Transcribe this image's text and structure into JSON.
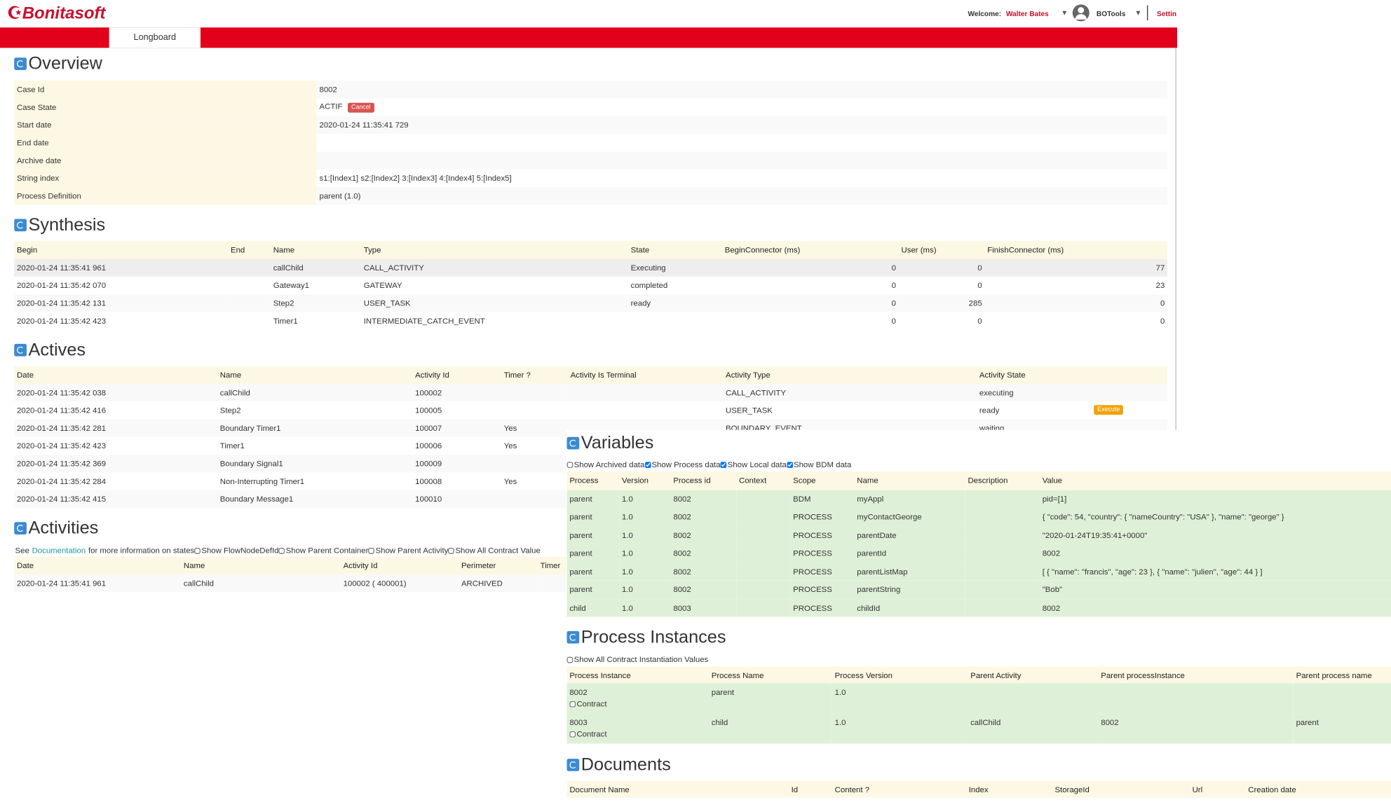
{
  "header": {
    "logo": "Bonitasoft",
    "welcome": "Welcome:",
    "user": "Walter Bates",
    "app": "BOTools",
    "settings": "Settin",
    "tab": "Longboard"
  },
  "overview": {
    "title": "Overview",
    "cancel": "Cancel",
    "rows": [
      [
        "Case Id",
        "8002"
      ],
      [
        "Case State",
        "ACTIF"
      ],
      [
        "Start date",
        "2020-01-24 11:35:41 729"
      ],
      [
        "End date",
        null
      ],
      [
        "Archive date",
        null
      ],
      [
        "String index",
        "s1:[Index1] s2:[Index2] 3:[Index3] 4:[Index4] 5:[Index5]"
      ],
      [
        "Process Definition",
        "parent (1.0)"
      ]
    ]
  },
  "synthesis": {
    "title": "Synthesis",
    "headers": [
      "Begin",
      "End",
      "Name",
      "Type",
      "State",
      "BeginConnector (ms)",
      "User (ms)",
      "FinishConnector (ms)"
    ],
    "rows": [
      [
        "2020-01-24 11:35:41 961",
        null,
        "callChild",
        "CALL_ACTIVITY",
        "Executing",
        0,
        0,
        77
      ],
      [
        "2020-01-24 11:35:42 070",
        null,
        "Gateway1",
        "GATEWAY",
        "completed",
        0,
        0,
        23
      ],
      [
        "2020-01-24 11:35:42 131",
        null,
        "Step2",
        "USER_TASK",
        "ready",
        0,
        285,
        0
      ],
      [
        "2020-01-24 11:35:42 423",
        null,
        "Timer1",
        "INTERMEDIATE_CATCH_EVENT",
        null,
        0,
        0,
        0
      ]
    ]
  },
  "actives": {
    "title": "Actives",
    "execute": "Execute",
    "headers": [
      "Date",
      "Name",
      "Activity Id",
      "Timer ?",
      "Activity Is Terminal",
      "Activity Type",
      "Activity State"
    ],
    "rows": [
      [
        "2020-01-24 11:35:42 038",
        "callChild",
        "100002",
        null,
        null,
        "CALL_ACTIVITY",
        "executing"
      ],
      [
        "2020-01-24 11:35:42 416",
        "Step2",
        "100005",
        null,
        null,
        "USER_TASK",
        "ready"
      ],
      [
        "2020-01-24 11:35:42 281",
        "Boundary Timer1",
        "100007",
        "Yes",
        null,
        "BOUNDARY_EVENT",
        "waiting"
      ],
      [
        "2020-01-24 11:35:42 423",
        "Timer1",
        "100006",
        "Yes"
      ],
      [
        "2020-01-24 11:35:42 369",
        "Boundary Signal1",
        "100009"
      ],
      [
        "2020-01-24 11:35:42 284",
        "Non-Interrupting Timer1",
        "100008",
        "Yes"
      ],
      [
        "2020-01-24 11:35:42 415",
        "Boundary Message1",
        "100010"
      ]
    ]
  },
  "activities": {
    "title": "Activities",
    "note_prefix": "See",
    "link": "Documentation",
    "note_suffix": "for more information on states",
    "options": [
      "Show FlowNodeDefId",
      "Show Parent Container",
      "Show Parent Activity",
      "Show All Contract Value"
    ],
    "headers": [
      "Date",
      "Name",
      "Activity Id",
      "Perimeter",
      "Timer"
    ],
    "rows": [
      [
        "2020-01-24 11:35:41 961",
        "callChild",
        "100002 ( 400001)",
        "ARCHIVED"
      ]
    ]
  },
  "variables": {
    "title": "Variables",
    "options": [
      {
        "label": "Show Archived data",
        "checked": false
      },
      {
        "label": "Show Process data",
        "checked": true
      },
      {
        "label": "Show Local data",
        "checked": true
      },
      {
        "label": "Show BDM data",
        "checked": true
      }
    ],
    "headers": [
      "Process",
      "Version",
      "Process id",
      "Context",
      "Scope",
      "Name",
      "Description",
      "Value"
    ],
    "rows": [
      [
        "parent",
        "1.0",
        "8002",
        null,
        "BDM",
        "myAppl",
        null,
        "pid=[1]"
      ],
      [
        "parent",
        "1.0",
        "8002",
        null,
        "PROCESS",
        "myContactGeorge",
        null,
        "{ \"code\": 54, \"country\": { \"nameCountry\": \"USA\" }, \"name\": \"george\" }"
      ],
      [
        "parent",
        "1.0",
        "8002",
        null,
        "PROCESS",
        "parentDate",
        null,
        "\"2020-01-24T19:35:41+0000\""
      ],
      [
        "parent",
        "1.0",
        "8002",
        null,
        "PROCESS",
        "parentId",
        null,
        "8002"
      ],
      [
        "parent",
        "1.0",
        "8002",
        null,
        "PROCESS",
        "parentListMap",
        null,
        "[ { \"name\": \"francis\", \"age\": 23 }, { \"name\": \"julien\", \"age\": 44 } ]"
      ],
      [
        "parent",
        "1.0",
        "8002",
        null,
        "PROCESS",
        "parentString",
        null,
        "\"Bob\""
      ],
      [
        "child",
        "1.0",
        "8003",
        null,
        "PROCESS",
        "childId",
        null,
        "8002"
      ]
    ]
  },
  "process_instances": {
    "title": "Process Instances",
    "option": "Show All Contract Instantiation Values",
    "headers": [
      "Process Instance",
      "Process Name",
      "Process Version",
      "Parent Activity",
      "Parent processInstance",
      "Parent process name"
    ],
    "rows": [
      {
        "cells": [
          "8002",
          "parent",
          "1.0"
        ],
        "contract": "Contract"
      },
      {
        "cells": [
          "8003",
          "child",
          "1.0",
          "callChild",
          "8002",
          "parent"
        ],
        "contract": "Contract"
      }
    ]
  },
  "documents": {
    "title": "Documents",
    "headers": [
      "Document Name",
      "Id",
      "Content ?",
      "Index",
      "StorageId",
      "Url",
      "Creation date"
    ]
  }
}
